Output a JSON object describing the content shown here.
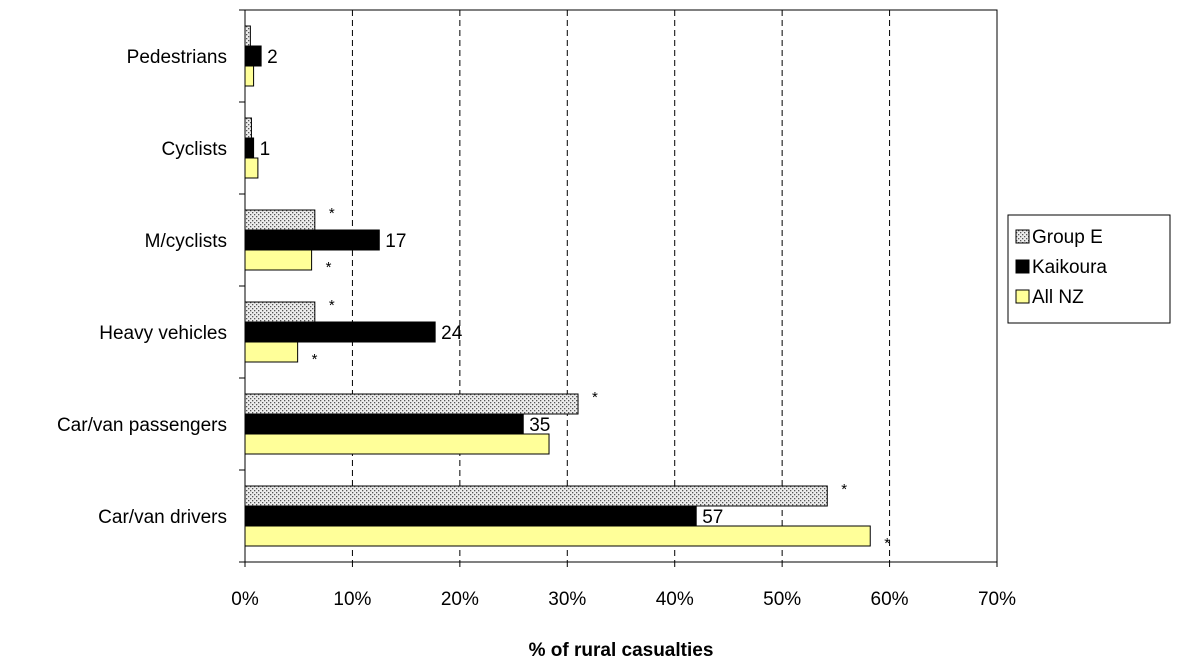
{
  "chart_data": {
    "type": "bar",
    "orientation": "horizontal",
    "categories": [
      "Pedestrians",
      "Cyclists",
      "M/cyclists",
      "Heavy vehicles",
      "Car/van passengers",
      "Car/van drivers"
    ],
    "series": [
      {
        "name": "Group E",
        "values": [
          0.5,
          0.6,
          6.5,
          6.5,
          31.0,
          54.2
        ],
        "color": "#d9d9d9",
        "pattern": "dotted"
      },
      {
        "name": "Kaikoura",
        "values": [
          1.5,
          0.8,
          12.5,
          17.7,
          25.9,
          42.0
        ],
        "color": "#000000"
      },
      {
        "name": "All NZ",
        "values": [
          0.8,
          1.2,
          6.2,
          4.9,
          28.3,
          58.2
        ],
        "color": "#ffff99"
      }
    ],
    "data_labels": {
      "Kaikoura": [
        "2",
        "1",
        "17",
        "24",
        "35",
        "57"
      ]
    },
    "significance_markers": {
      "symbol": "*",
      "Group E": [
        false,
        false,
        true,
        true,
        true,
        true
      ],
      "Kaikoura": [
        false,
        false,
        false,
        false,
        false,
        false
      ],
      "All NZ": [
        false,
        false,
        true,
        true,
        false,
        true
      ]
    },
    "x_ticks": [
      "0%",
      "10%",
      "20%",
      "30%",
      "40%",
      "50%",
      "60%",
      "70%"
    ],
    "xlim": [
      0,
      70
    ],
    "xlabel": "% of rural casualties",
    "ylabel": "",
    "title": "",
    "grid": "vertical dashed",
    "legend_position": "right"
  }
}
